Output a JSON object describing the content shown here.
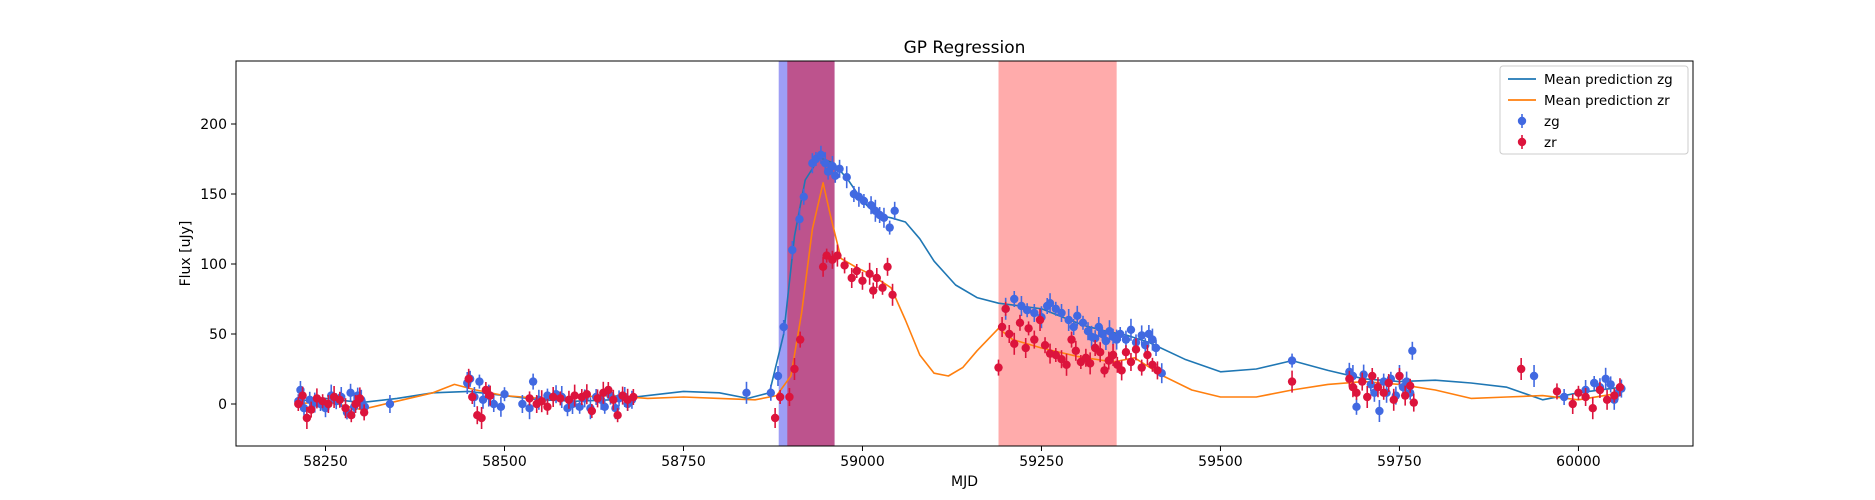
{
  "chart_data": {
    "type": "scatter",
    "title": "GP Regression",
    "xlabel": "MJD",
    "ylabel": "Flux [uJy]",
    "xlim": [
      58125,
      60160
    ],
    "ylim": [
      -30,
      245
    ],
    "x_ticks": [
      58250,
      58500,
      58750,
      59000,
      59250,
      59500,
      59750,
      60000
    ],
    "y_ticks": [
      0,
      50,
      100,
      150,
      200
    ],
    "grid": false,
    "legend_position": "top-right",
    "legend": [
      {
        "label": "Mean prediction zg",
        "kind": "line",
        "color": "#1f77b4"
      },
      {
        "label": "Mean prediction zr",
        "kind": "line",
        "color": "#ff7f0e"
      },
      {
        "label": "zg",
        "kind": "marker",
        "color": "#4169e1"
      },
      {
        "label": "zr",
        "kind": "marker",
        "color": "#dc143c"
      }
    ],
    "shaded_regions": [
      {
        "x0": 58883,
        "x1": 58961,
        "color": "#6a6af0",
        "opacity": 0.65
      },
      {
        "x0": 58895,
        "x1": 58961,
        "color": "#c2457a",
        "opacity": 0.85
      },
      {
        "x0": 59190,
        "x1": 59355,
        "color": "#ff6666",
        "opacity": 0.55
      }
    ],
    "series": [
      {
        "name": "Mean prediction zg",
        "kind": "line",
        "color": "#1f77b4",
        "x": [
          58210,
          58250,
          58300,
          58350,
          58400,
          58450,
          58500,
          58550,
          58600,
          58650,
          58700,
          58750,
          58800,
          58840,
          58870,
          58890,
          58905,
          58920,
          58940,
          58960,
          58980,
          59000,
          59020,
          59040,
          59060,
          59080,
          59100,
          59130,
          59160,
          59190,
          59220,
          59250,
          59280,
          59310,
          59340,
          59370,
          59400,
          59450,
          59500,
          59550,
          59600,
          59650,
          59700,
          59750,
          59800,
          59850,
          59900,
          59950,
          60000,
          60060
        ],
        "y": [
          2,
          4,
          1,
          4,
          8,
          9,
          6,
          3,
          2,
          3,
          6,
          9,
          8,
          4,
          8,
          50,
          120,
          160,
          176,
          172,
          160,
          145,
          135,
          133,
          130,
          118,
          102,
          85,
          76,
          72,
          70,
          68,
          62,
          56,
          52,
          49,
          44,
          32,
          23,
          25,
          31,
          24,
          18,
          16,
          17,
          15,
          12,
          3,
          8,
          12
        ]
      },
      {
        "name": "Mean prediction zr",
        "kind": "line",
        "color": "#ff7f0e",
        "x": [
          58210,
          58250,
          58300,
          58350,
          58400,
          58430,
          58460,
          58500,
          58550,
          58600,
          58650,
          58700,
          58750,
          58800,
          58850,
          58880,
          58900,
          58915,
          58930,
          58945,
          58955,
          58970,
          58990,
          59010,
          59040,
          59060,
          59080,
          59100,
          59120,
          59140,
          59160,
          59190,
          59210,
          59250,
          59300,
          59350,
          59380,
          59420,
          59460,
          59500,
          59550,
          59600,
          59650,
          59700,
          59750,
          59800,
          59850,
          59900,
          59950,
          60000,
          60060
        ],
        "y": [
          0,
          2,
          -4,
          2,
          8,
          14,
          10,
          6,
          4,
          5,
          6,
          4,
          5,
          4,
          3,
          6,
          20,
          65,
          125,
          158,
          135,
          104,
          98,
          93,
          83,
          60,
          35,
          22,
          20,
          26,
          38,
          54,
          46,
          40,
          34,
          30,
          33,
          20,
          10,
          5,
          5,
          10,
          14,
          16,
          14,
          10,
          4,
          5,
          6,
          3,
          8
        ]
      },
      {
        "name": "zg",
        "kind": "points",
        "color": "#4169e1",
        "x": [
          58212,
          58215,
          58220,
          58228,
          58235,
          58243,
          58250,
          58258,
          58265,
          58272,
          58280,
          58285,
          58290,
          58295,
          58300,
          58305,
          58340,
          58448,
          58452,
          58458,
          58465,
          58470,
          58478,
          58485,
          58495,
          58500,
          58525,
          58535,
          58540,
          58548,
          58560,
          58572,
          58580,
          58588,
          58595,
          58605,
          58612,
          58620,
          58628,
          58635,
          58640,
          58648,
          58655,
          58660,
          58668,
          58672,
          58678,
          58838,
          58872,
          58882,
          58890,
          58902,
          58912,
          58918,
          58930,
          58935,
          58942,
          58948,
          58952,
          58958,
          58962,
          58968,
          58978,
          58988,
          58995,
          59002,
          59012,
          59018,
          59024,
          59030,
          59038,
          59045,
          59200,
          59212,
          59222,
          59230,
          59240,
          59250,
          59258,
          59262,
          59270,
          59278,
          59288,
          59295,
          59300,
          59308,
          59315,
          59320,
          59325,
          59330,
          59335,
          59340,
          59345,
          59350,
          59355,
          59360,
          59368,
          59375,
          59382,
          59390,
          59395,
          59400,
          59405,
          59410,
          59418,
          59600,
          59680,
          59685,
          59690,
          59700,
          59710,
          59715,
          59722,
          59728,
          59732,
          59738,
          59745,
          59750,
          59755,
          59760,
          59765,
          59768,
          59938,
          59980,
          60010,
          60022,
          60030,
          60038,
          60045,
          60050,
          60055,
          60060
        ],
        "y": [
          2,
          10,
          -3,
          3,
          1,
          0,
          -3,
          6,
          2,
          5,
          -6,
          8,
          -2,
          6,
          3,
          -2,
          0,
          15,
          18,
          5,
          16,
          3,
          6,
          0,
          -2,
          7,
          0,
          -3,
          16,
          3,
          6,
          7,
          5,
          -3,
          0,
          -2,
          4,
          -3,
          5,
          3,
          -2,
          6,
          -3,
          4,
          5,
          0,
          3,
          8,
          8,
          20,
          55,
          110,
          132,
          148,
          172,
          175,
          178,
          172,
          166,
          170,
          163,
          168,
          162,
          150,
          148,
          145,
          142,
          138,
          135,
          133,
          126,
          138,
          68,
          75,
          70,
          67,
          65,
          62,
          70,
          72,
          68,
          65,
          60,
          55,
          63,
          58,
          52,
          48,
          47,
          55,
          50,
          45,
          52,
          48,
          46,
          50,
          46,
          53,
          44,
          49,
          42,
          50,
          46,
          40,
          22,
          31,
          23,
          20,
          -2,
          21,
          14,
          8,
          -5,
          16,
          8,
          18,
          6,
          20,
          12,
          16,
          8,
          38,
          20,
          5,
          10,
          15,
          12,
          18,
          14,
          3,
          8,
          11
        ]
      },
      {
        "name": "zr",
        "kind": "points",
        "color": "#dc143c",
        "x": [
          58212,
          58218,
          58224,
          58230,
          58238,
          58246,
          58254,
          58262,
          58270,
          58278,
          58286,
          58292,
          58298,
          58304,
          58450,
          58455,
          58462,
          58468,
          58474,
          58480,
          58535,
          58545,
          58552,
          58560,
          58568,
          58578,
          58590,
          58598,
          58608,
          58615,
          58622,
          58630,
          58638,
          58645,
          58652,
          58658,
          58665,
          58672,
          58680,
          58878,
          58885,
          58898,
          58905,
          58913,
          58945,
          58950,
          58958,
          58965,
          58975,
          58985,
          58992,
          59000,
          59010,
          59015,
          59020,
          59028,
          59035,
          59042,
          59190,
          59195,
          59200,
          59205,
          59212,
          59220,
          59228,
          59232,
          59240,
          59248,
          59255,
          59262,
          59270,
          59278,
          59285,
          59292,
          59298,
          59305,
          59312,
          59318,
          59325,
          59332,
          59338,
          59344,
          59350,
          59356,
          59362,
          59368,
          59375,
          59382,
          59390,
          59398,
          59405,
          59412,
          59600,
          59680,
          59685,
          59690,
          59698,
          59705,
          59712,
          59720,
          59728,
          59735,
          59742,
          59750,
          59758,
          59765,
          59770,
          59920,
          59970,
          59992,
          60000,
          60010,
          60020,
          60030,
          60040,
          60050,
          60058
        ],
        "y": [
          0,
          6,
          -10,
          -4,
          4,
          2,
          0,
          5,
          3,
          -3,
          -8,
          0,
          4,
          -6,
          18,
          5,
          -8,
          -10,
          10,
          6,
          4,
          0,
          2,
          -2,
          5,
          4,
          3,
          6,
          5,
          7,
          -5,
          4,
          8,
          10,
          3,
          -8,
          6,
          3,
          5,
          -10,
          5,
          5,
          25,
          46,
          98,
          106,
          103,
          106,
          99,
          90,
          95,
          88,
          93,
          81,
          90,
          83,
          98,
          78,
          26,
          55,
          68,
          50,
          43,
          58,
          40,
          54,
          46,
          60,
          42,
          36,
          35,
          32,
          28,
          46,
          38,
          30,
          33,
          29,
          40,
          37,
          24,
          31,
          35,
          28,
          24,
          37,
          30,
          39,
          26,
          35,
          28,
          24,
          16,
          18,
          12,
          8,
          16,
          5,
          20,
          12,
          8,
          15,
          3,
          20,
          6,
          13,
          1,
          25,
          9,
          0,
          8,
          5,
          -3,
          10,
          3,
          6,
          12
        ]
      }
    ]
  }
}
